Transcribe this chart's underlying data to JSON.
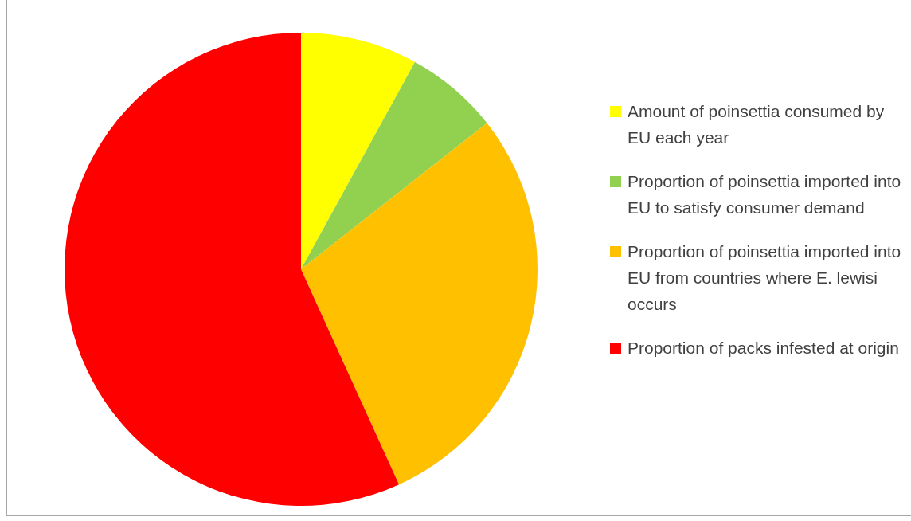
{
  "chart_data": {
    "type": "pie",
    "categories": [
      "Amount of poinsettia consumed by EU each year",
      "Proportion of poinsettia imported into EU to satisfy consumer demand",
      "Proportion of poinsettia imported into EU from countries where E. lewisi occurs",
      "Proportion of packs infested at origin"
    ],
    "values": [
      8,
      6.4,
      28.8,
      56.8
    ],
    "colors": [
      "#ffff00",
      "#92d050",
      "#ffc000",
      "#ff0000"
    ],
    "legend": "right"
  }
}
